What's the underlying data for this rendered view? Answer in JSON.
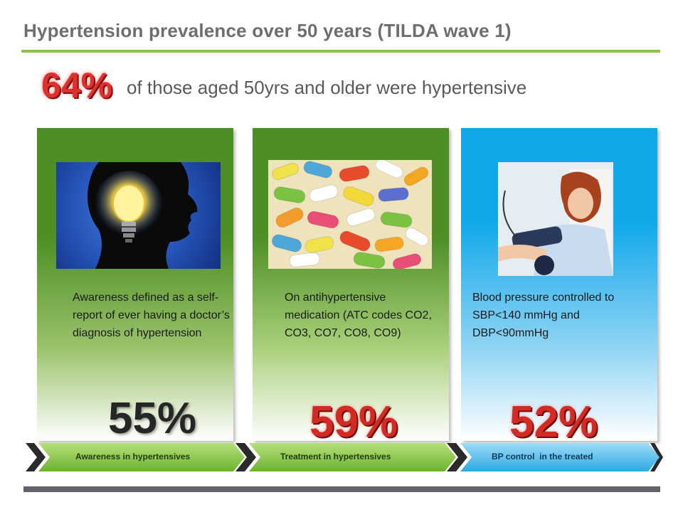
{
  "slide": {
    "title": "Hypertension prevalence over 50 years (TILDA wave 1)",
    "headline_pct": "64%",
    "headline_text": "of those aged 50yrs and older were hypertensive"
  },
  "panels": [
    {
      "description": "Awareness defined as a self-report of ever having a doctor’s diagnosis of hypertension",
      "percent": "55%",
      "label": "Awareness in hypertensives",
      "color": "#4d8f25"
    },
    {
      "description": "On antihypertensive medication (ATC codes CO2, CO3, CO7, CO8, CO9)",
      "percent": "59%",
      "label": "Treatment in hypertensives",
      "color": "#4d8f25"
    },
    {
      "description": "Blood pressure controlled to SBP<140 mmHg and DBP<90mmHg",
      "percent": "52%",
      "label": "BP control  in the treated",
      "color": "#11a8ea"
    }
  ],
  "colors": {
    "accent_green": "#8cc63f",
    "highlight_red": "#e0302c",
    "title_gray": "#6e6e6e"
  }
}
